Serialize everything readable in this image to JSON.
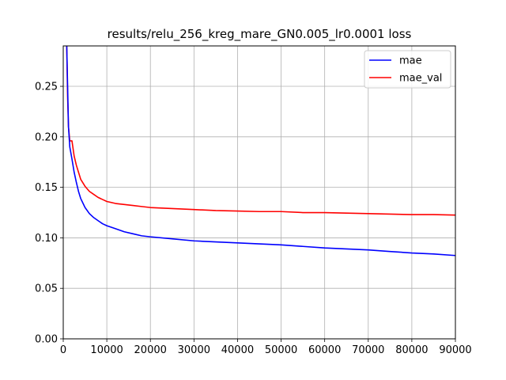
{
  "chart_data": {
    "type": "line",
    "title": "results/relu_256_kreg_mare_GN0.005_lr0.0001 loss",
    "xlabel": "",
    "ylabel": "",
    "xlim": [
      0,
      90000
    ],
    "ylim": [
      0,
      0.29
    ],
    "xticks": [
      0,
      10000,
      20000,
      30000,
      40000,
      50000,
      60000,
      70000,
      80000,
      90000
    ],
    "xtick_labels": [
      "0",
      "10000",
      "20000",
      "30000",
      "40000",
      "50000",
      "60000",
      "70000",
      "80000",
      "90000"
    ],
    "yticks": [
      0.0,
      0.05,
      0.1,
      0.15,
      0.2,
      0.25
    ],
    "ytick_labels": [
      "0.00",
      "0.05",
      "0.10",
      "0.15",
      "0.20",
      "0.25"
    ],
    "grid": true,
    "legend": "top-right",
    "series": [
      {
        "name": "mae",
        "color": "#0000ff",
        "x": [
          800,
          1000,
          1200,
          1500,
          2000,
          2500,
          3000,
          3500,
          4000,
          5000,
          6000,
          7000,
          8000,
          9000,
          10000,
          12000,
          14000,
          16000,
          18000,
          20000,
          25000,
          30000,
          35000,
          40000,
          45000,
          50000,
          55000,
          60000,
          65000,
          70000,
          75000,
          80000,
          85000,
          90000
        ],
        "y": [
          0.29,
          0.25,
          0.21,
          0.19,
          0.178,
          0.165,
          0.155,
          0.146,
          0.139,
          0.13,
          0.124,
          0.12,
          0.117,
          0.114,
          0.112,
          0.109,
          0.106,
          0.104,
          0.102,
          0.101,
          0.099,
          0.097,
          0.096,
          0.095,
          0.094,
          0.093,
          0.0915,
          0.09,
          0.089,
          0.088,
          0.0865,
          0.085,
          0.084,
          0.0825
        ]
      },
      {
        "name": "mae_val",
        "color": "#ff0000",
        "x": [
          800,
          1000,
          1200,
          1500,
          2000,
          2500,
          3000,
          3500,
          4000,
          5000,
          6000,
          7000,
          8000,
          9000,
          10000,
          12000,
          14000,
          16000,
          18000,
          20000,
          25000,
          30000,
          35000,
          40000,
          45000,
          50000,
          55000,
          60000,
          65000,
          70000,
          75000,
          80000,
          85000,
          90000
        ],
        "y": [
          0.29,
          0.24,
          0.21,
          0.196,
          0.196,
          0.181,
          0.172,
          0.165,
          0.158,
          0.151,
          0.146,
          0.143,
          0.14,
          0.138,
          0.136,
          0.134,
          0.133,
          0.132,
          0.131,
          0.13,
          0.129,
          0.128,
          0.127,
          0.1265,
          0.126,
          0.126,
          0.125,
          0.125,
          0.1245,
          0.124,
          0.1235,
          0.123,
          0.123,
          0.1225
        ]
      }
    ]
  }
}
